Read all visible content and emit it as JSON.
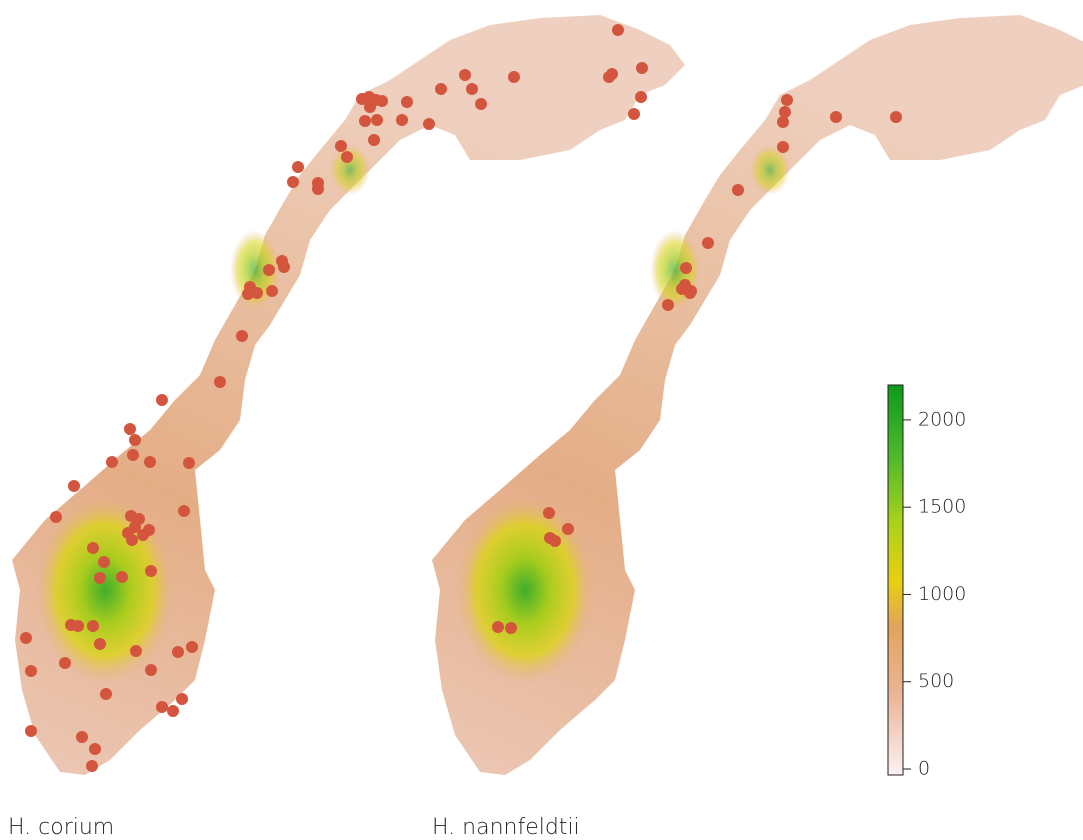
{
  "maps": [
    {
      "label": "H. corium"
    },
    {
      "label": "H. nannfeldtii"
    }
  ],
  "legend": {
    "lim": [
      0,
      2200
    ],
    "ticks": [
      0,
      500,
      1000,
      1500,
      2000
    ]
  }
}
